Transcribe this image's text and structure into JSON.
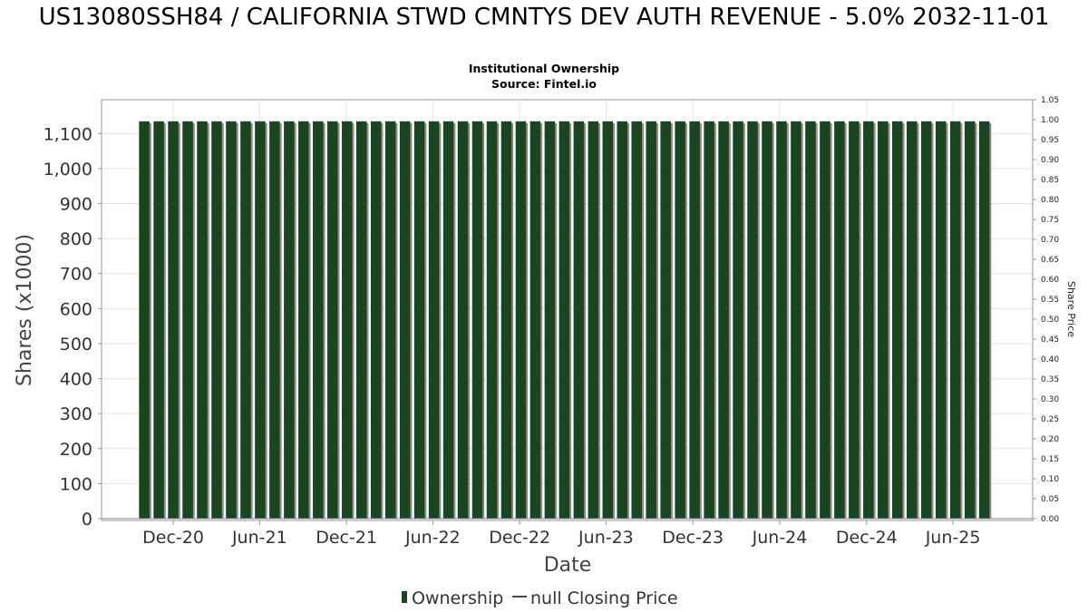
{
  "chart_data": {
    "type": "bar",
    "title": "US13080SSH84 / CALIFORNIA STWD CMNTYS DEV AUTH REVENUE - 5.0% 2032-11-01",
    "subtitle_lines": [
      "Institutional Ownership",
      "Source: Fintel.io"
    ],
    "xlabel": "Date",
    "ylabel": "Shares (x1000)",
    "y2label": "Share Price",
    "ylim": [
      0,
      1150
    ],
    "y2lim": [
      0,
      1.05
    ],
    "y_ticks": [
      0,
      100,
      200,
      300,
      400,
      500,
      600,
      700,
      800,
      900,
      1000,
      1100
    ],
    "y_tick_labels": [
      "0",
      "100",
      "200",
      "300",
      "400",
      "500",
      "600",
      "700",
      "800",
      "900",
      "1,000",
      "1,100"
    ],
    "y2_ticks": [
      0,
      0.05,
      0.1,
      0.15,
      0.2,
      0.25,
      0.3,
      0.35,
      0.4,
      0.45,
      0.5,
      0.55,
      0.6,
      0.65,
      0.7,
      0.75,
      0.8,
      0.85,
      0.9,
      0.95,
      1.0,
      1.05
    ],
    "y2_tick_labels": [
      "0.00",
      "0.05",
      "0.10",
      "0.15",
      "0.20",
      "0.25",
      "0.30",
      "0.35",
      "0.40",
      "0.45",
      "0.50",
      "0.55",
      "0.60",
      "0.65",
      "0.70",
      "0.75",
      "0.80",
      "0.85",
      "0.90",
      "0.95",
      "1.00",
      "1.05"
    ],
    "x_tick_labels": [
      "Dec-20",
      "Jun-21",
      "Dec-21",
      "Jun-22",
      "Dec-22",
      "Jun-23",
      "Dec-23",
      "Jun-24",
      "Dec-24",
      "Jun-25"
    ],
    "x_range": [
      "2020-07-03",
      "2025-11-16"
    ],
    "x_ticks": [
      "2020-12-01",
      "2021-06-01",
      "2021-12-01",
      "2022-06-01",
      "2022-12-01",
      "2023-06-01",
      "2023-12-01",
      "2024-06-01",
      "2024-12-01",
      "2025-06-01"
    ],
    "series": [
      {
        "name": "Ownership",
        "color": "#1b4522",
        "x_start": "2020-10-01",
        "x_end": "2025-08-06",
        "count": 59,
        "value": 1135
      },
      {
        "name": "null Closing Price",
        "color": "#444444",
        "values": []
      }
    ],
    "legend": "bottom-center",
    "grid": true
  }
}
